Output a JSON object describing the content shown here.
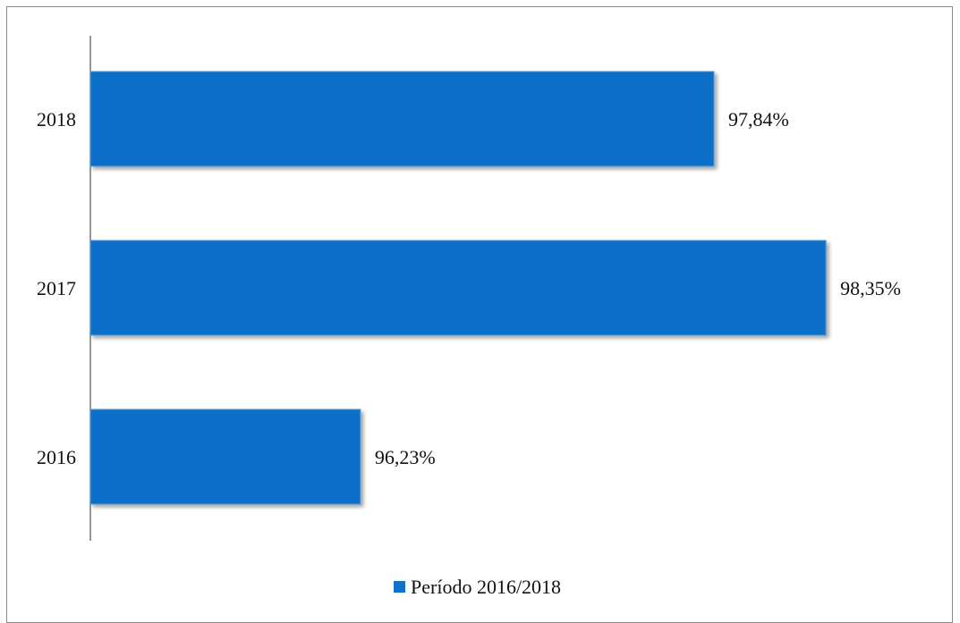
{
  "chart_data": {
    "type": "bar",
    "orientation": "horizontal",
    "categories": [
      "2018",
      "2017",
      "2016"
    ],
    "series": [
      {
        "name": "Período 2016/2018",
        "values": [
          97.84,
          98.35,
          96.23
        ],
        "labels": [
          "97,84%",
          "98,35%",
          "96,23%"
        ],
        "color": "#1170c8"
      }
    ],
    "xlim": [
      95.0,
      98.5
    ],
    "grid": false,
    "legend_position": "bottom"
  }
}
